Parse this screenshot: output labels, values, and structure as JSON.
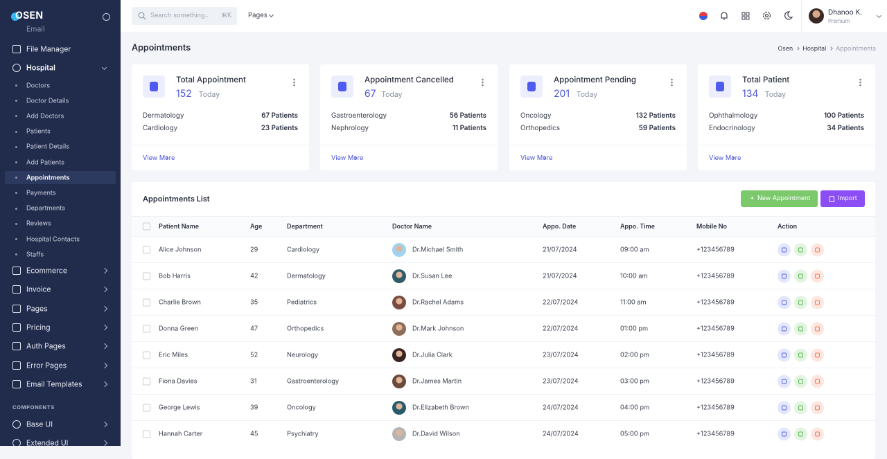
{
  "brand": "OSEN",
  "sidebar": {
    "clipped_item": "Email",
    "file_manager": "File Manager",
    "hospital": "Hospital",
    "hospital_items": [
      "Doctors",
      "Doctor Details",
      "Add Doctors",
      "Patients",
      "Patient Details",
      "Add Patients",
      "Appointments",
      "Payments",
      "Departments",
      "Reviews",
      "Hospital Contacts",
      "Staffs"
    ],
    "menu": [
      "Ecommerce",
      "Invoice",
      "Pages",
      "Pricing",
      "Auth Pages",
      "Error Pages",
      "Email Templates"
    ],
    "section": "COMPONENTS",
    "components": [
      "Base UI",
      "Extended UI"
    ]
  },
  "topbar": {
    "search_placeholder": "Search something..",
    "shortcut": "⌘K",
    "pages": "Pages",
    "user_name": "Dhanoo K.",
    "user_plan": "Premium"
  },
  "header": {
    "title": "Appointments",
    "breadcrumb": [
      "Osen",
      "Hospital",
      "Appointments"
    ]
  },
  "cards": [
    {
      "title": "Total Appointment",
      "count": 152,
      "period": "Today",
      "rows": [
        [
          "Dermatology",
          "67 Patients"
        ],
        [
          "Cardiology",
          "23 Patients"
        ]
      ],
      "link": "View More"
    },
    {
      "title": "Appointment Cancelled",
      "count": 67,
      "period": "Today",
      "rows": [
        [
          "Gastroenterology",
          "56 Patients"
        ],
        [
          "Nephrology",
          "11 Patients"
        ]
      ],
      "link": "View More"
    },
    {
      "title": "Appointment Pending",
      "count": 201,
      "period": "Today",
      "rows": [
        [
          "Oncology",
          "132 Patients"
        ],
        [
          "Orthopedics",
          "59 Patients"
        ]
      ],
      "link": "View More"
    },
    {
      "title": "Total Patient",
      "count": 134,
      "period": "Today",
      "rows": [
        [
          "Ophthalmology",
          "100 Patients"
        ],
        [
          "Endocrinology",
          "34 Patients"
        ]
      ],
      "link": "View More"
    }
  ],
  "table": {
    "title": "Appointments List",
    "buttons": [
      "New Appointment",
      "Import"
    ],
    "columns": [
      "Patient Name",
      "Age",
      "Department",
      "Doctor Name",
      "Appo. Date",
      "Appo. Time",
      "Mobile No",
      "Action"
    ],
    "rows": [
      [
        "Alice Johnson",
        29,
        "Cardiology",
        "Dr.Michael Smith",
        "21/07/2024",
        "09:00 am",
        "+123456789"
      ],
      [
        "Bob Harris",
        42,
        "Dermatology",
        "Dr.Susan Lee",
        "21/07/2024",
        "10:00 am",
        "+123456789"
      ],
      [
        "Charlie Brown",
        35,
        "Pediatrics",
        "Dr.Rachel Adams",
        "22/07/2024",
        "11:00 am",
        "+123456789"
      ],
      [
        "Donna Green",
        47,
        "Orthopedics",
        "Dr.Mark Johnson",
        "22/07/2024",
        "01:00 pm",
        "+123456789"
      ],
      [
        "Eric Miles",
        52,
        "Neurology",
        "Dr.Julia Clark",
        "23/07/2024",
        "02:00 pm",
        "+123456789"
      ],
      [
        "Fiona Davies",
        31,
        "Gastroenterology",
        "Dr.James Martin",
        "23/07/2024",
        "03:00 pm",
        "+123456789"
      ],
      [
        "George Lewis",
        39,
        "Oncology",
        "Dr.Elizabeth Brown",
        "24/07/2024",
        "04:00 pm",
        "+123456789"
      ],
      [
        "Hannah Carter",
        45,
        "Psychiatry",
        "Dr.David Wilson",
        "24/07/2024",
        "05:00 pm",
        "+123456789"
      ]
    ]
  }
}
